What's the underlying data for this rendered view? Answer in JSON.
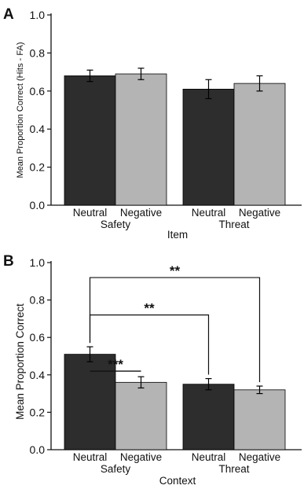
{
  "colors": {
    "neutral": "#2d2d2d",
    "negative": "#b4b4b4",
    "axis": "#111111",
    "bracket": "#111111"
  },
  "chart_data": [
    {
      "panel": "A",
      "type": "bar",
      "ylabel": "Mean Proportion Correct (Hits - FA)",
      "xlabel": "Item",
      "ylim": [
        0.0,
        1.0
      ],
      "yticks": [
        "0.0",
        "0.2",
        "0.4",
        "0.6",
        "0.8",
        "1.0"
      ],
      "groups": [
        "Safety",
        "Threat"
      ],
      "categories": [
        "Neutral",
        "Negative",
        "Neutral",
        "Negative"
      ],
      "values": [
        0.68,
        0.69,
        0.61,
        0.64
      ],
      "errors": [
        0.03,
        0.03,
        0.05,
        0.04
      ]
    },
    {
      "panel": "B",
      "type": "bar",
      "ylabel": "Mean Proportion Correct",
      "xlabel": "Context",
      "ylim": [
        0.0,
        1.0
      ],
      "yticks": [
        "0.0",
        "0.2",
        "0.4",
        "0.6",
        "0.8",
        "1.0"
      ],
      "groups": [
        "Safety",
        "Threat"
      ],
      "categories": [
        "Neutral",
        "Negative",
        "Neutral",
        "Negative"
      ],
      "values": [
        0.51,
        0.36,
        0.35,
        0.32
      ],
      "errors": [
        0.04,
        0.03,
        0.03,
        0.02
      ],
      "annotations": [
        {
          "label": "***",
          "from": 0,
          "to": 1,
          "y": 0.42,
          "drop_to_bars": false
        },
        {
          "label": "**",
          "from": 0,
          "to": 2,
          "y": 0.72,
          "drop_to_bars": true
        },
        {
          "label": "**",
          "from": 0,
          "to": 3,
          "y": 0.92,
          "drop_to_bars": true
        }
      ]
    }
  ]
}
